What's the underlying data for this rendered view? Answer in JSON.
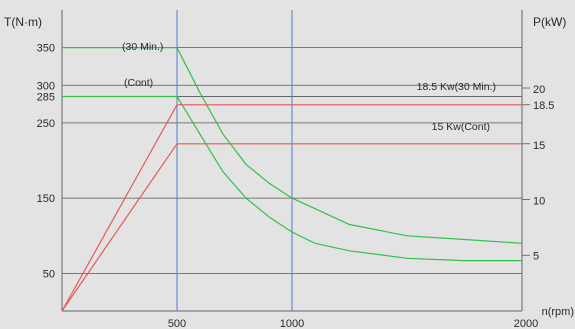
{
  "chart_data": {
    "type": "line",
    "title": "",
    "x_axis": {
      "label": "n(rpm)",
      "range": [
        0,
        2000
      ],
      "ticks": [
        500,
        1000,
        2000
      ]
    },
    "y_left": {
      "label": "T(N·m)",
      "range": [
        0,
        400
      ],
      "ticks": [
        50,
        150,
        250,
        285,
        300,
        350
      ]
    },
    "y_right": {
      "label": "P(kW)",
      "range": [
        0,
        27
      ],
      "ticks": [
        5,
        10,
        15,
        18.5,
        20
      ]
    },
    "grid": true,
    "vertical_gridlines": [
      500,
      1000
    ],
    "series": [
      {
        "axis": "torque",
        "color": "#33c04a",
        "points": [
          [
            0,
            350
          ],
          [
            500,
            350
          ],
          [
            550,
            320
          ],
          [
            600,
            290
          ],
          [
            700,
            235
          ],
          [
            800,
            195
          ],
          [
            900,
            170
          ],
          [
            1000,
            150
          ],
          [
            1250,
            115
          ],
          [
            1500,
            100
          ],
          [
            1750,
            95
          ],
          [
            2000,
            90
          ]
        ]
      },
      {
        "axis": "torque",
        "color": "#33c04a",
        "points": [
          [
            0,
            285
          ],
          [
            500,
            285
          ],
          [
            550,
            260
          ],
          [
            600,
            235
          ],
          [
            700,
            185
          ],
          [
            800,
            150
          ],
          [
            900,
            125
          ],
          [
            1000,
            105
          ],
          [
            1100,
            90
          ],
          [
            1250,
            80
          ],
          [
            1500,
            70
          ],
          [
            1750,
            67
          ],
          [
            2000,
            67
          ]
        ]
      },
      {
        "axis": "power",
        "color": "#e25a5a",
        "points": [
          [
            0,
            0
          ],
          [
            500,
            18.5
          ],
          [
            2000,
            18.5
          ]
        ]
      },
      {
        "axis": "power",
        "color": "#e25a5a",
        "points": [
          [
            0,
            0
          ],
          [
            500,
            15
          ],
          [
            2000,
            15
          ]
        ]
      }
    ],
    "annotations": {
      "torque_30min": "(30 Min.)",
      "torque_cont": "(Cont)",
      "power_30min": "18.5 Kw(30 Min.)",
      "power_cont": "15 Kw(Cont)"
    }
  },
  "colors": {
    "background": "#e3e3e3",
    "torque_line": "#33c04a",
    "power_line": "#e25a5a",
    "grid_vertical": "#4f7fc4",
    "grid_horizontal": "#555555"
  }
}
